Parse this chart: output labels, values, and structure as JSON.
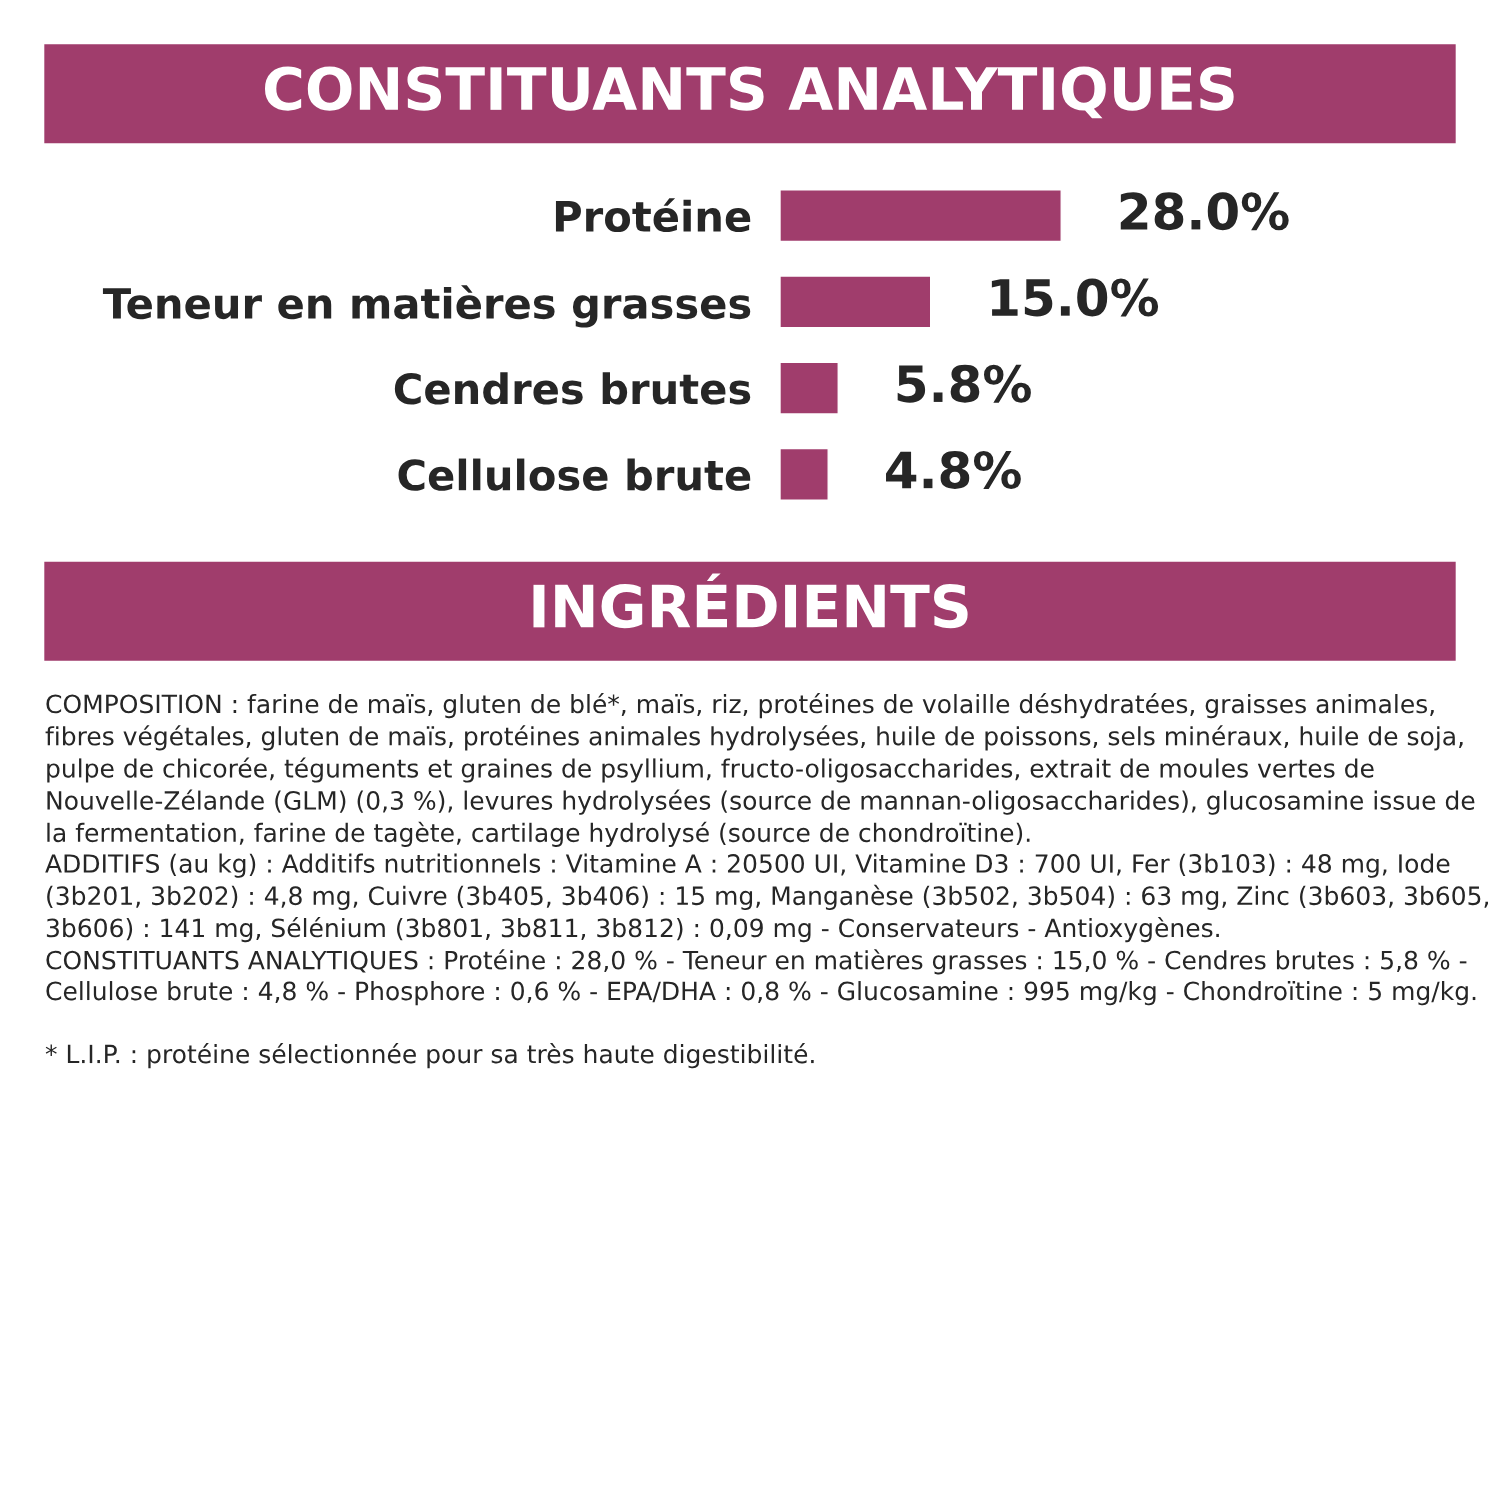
{
  "chart_data": {
    "type": "bar",
    "orientation": "horizontal",
    "title": "CONSTITUANTS ANALYTIQUES",
    "categories": [
      "Protéine",
      "Teneur en matières grasses",
      "Cendres brutes",
      "Cellulose brute"
    ],
    "values": [
      28.0,
      15.0,
      5.8,
      4.8
    ],
    "color": "#a03d6c",
    "value_labels": [
      "28.0%",
      "15.0%",
      "5.8%",
      "4.8%"
    ],
    "annotations": [
      "INGRÉDIENTS",
      "COMPOSITION : farine de maïs, gluten de blé*, maïs, riz, protéines de volaille déshydratées, graisses animales, fibres végétales, gluten de maïs, protéines animales hydrolysées, huile de poissons, sels minéraux, huile de soja, pulpe de chicorée, téguments et graines de psyllium, fructo-oligosaccharides, extrait de moules vertes de Nouvelle-Zélande (GLM) (0,3 %), levures hydrolysées (source de mannan-oligosaccharides), glucosamine issue de la fermentation, farine de tagète, cartilage hydrolysé (source de chondroïtine).",
      "ADDITIFS (au kg) : Additifs nutritionnels : Vitamine A : 20500 UI, Vitamine D3 : 700 UI, Fer (3b103) : 48 mg, Iode (3b201, 3b202) : 4,8 mg, Cuivre (3b405, 3b406) : 15 mg, Manganèse (3b502, 3b504) : 63 mg, Zinc (3b603, 3b605, 3b606) : 141 mg, Sélénium (3b801, 3b811, 3b812) : 0,09 mg - Conservateurs - Antioxygènes.",
      "CONSTITUANTS ANALYTIQUES : Protéine : 28,0 % - Teneur en matières grasses : 15,0 % - Cendres brutes : 5,8 % - Cellulose brute : 4,8 % - Phosphore : 0,6 % - EPA/DHA : 0,8 % - Glucosamine : 995 mg/kg - Chondroïtine : 5 mg/kg.",
      "* L.I.P. : protéine sélectionnée pour sa très haute digestibilité."
    ]
  }
}
